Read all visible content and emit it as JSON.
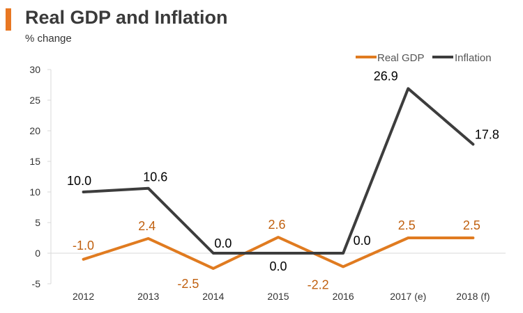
{
  "colors": {
    "accent": "#e87722",
    "gdp": "#e07b20",
    "inflation": "#3d3d3d",
    "axis": "#d9d9d9",
    "gdp_label": "#c0600f",
    "inflation_label": "#000000"
  },
  "chart_data": {
    "type": "line",
    "title": "Real GDP and Inflation",
    "subtitle": "% change",
    "categories": [
      "2012",
      "2013",
      "2014",
      "2015",
      "2016",
      "2017 (e)",
      "2018 (f)"
    ],
    "ylim": [
      -5,
      30
    ],
    "yticks": [
      -5,
      0,
      5,
      10,
      15,
      20,
      25,
      30
    ],
    "legend_position": "top-right",
    "series": [
      {
        "name": "Real GDP",
        "values": [
          -1.0,
          2.4,
          -2.5,
          2.6,
          -2.2,
          2.5,
          2.5
        ],
        "labels": [
          "-1.0",
          "2.4",
          "-2.5",
          "2.6",
          "-2.2",
          "2.5",
          "2.5"
        ]
      },
      {
        "name": "Inflation",
        "values": [
          10.0,
          10.6,
          0.0,
          0.0,
          0.0,
          26.9,
          17.8
        ],
        "labels": [
          "10.0",
          "10.6",
          "0.0",
          "0.0",
          "0.0",
          "26.9",
          "17.8"
        ]
      }
    ]
  }
}
